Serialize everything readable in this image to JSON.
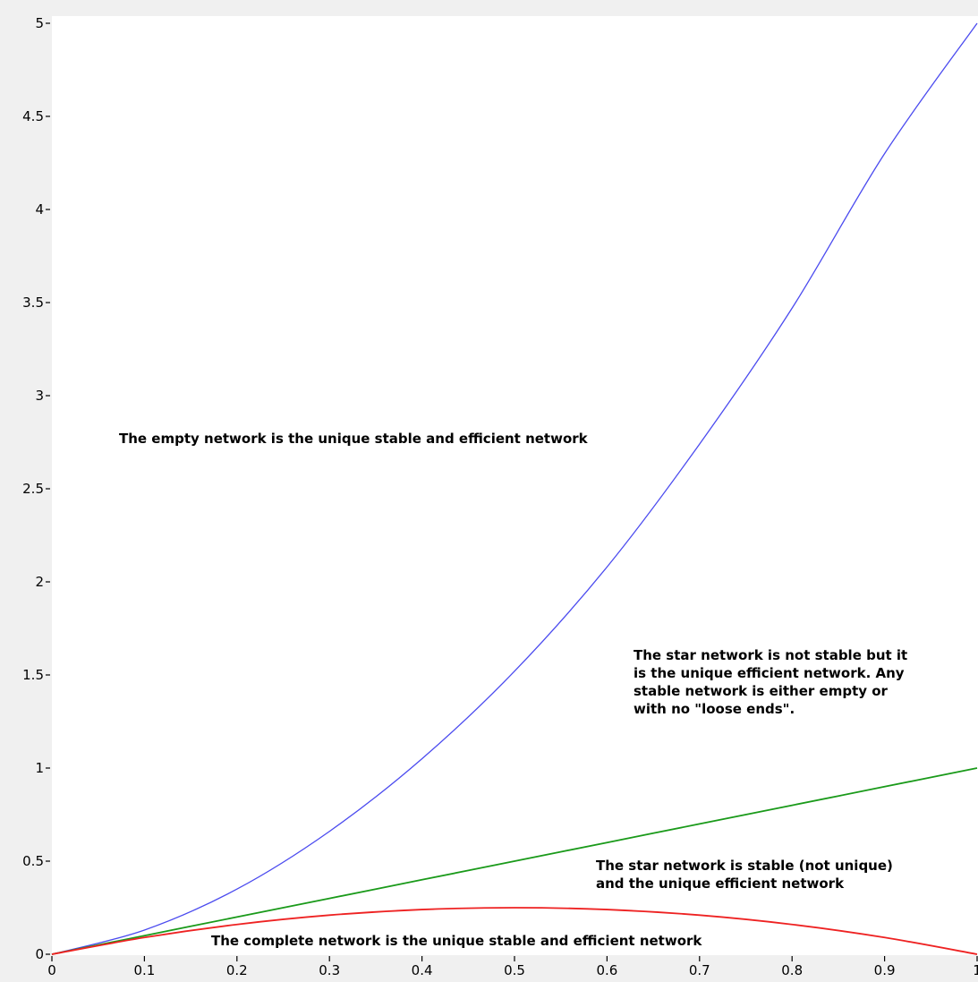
{
  "chart_data": {
    "type": "line",
    "title": "",
    "xlabel": "",
    "ylabel": "",
    "xlim": [
      0,
      1
    ],
    "ylim": [
      0,
      5
    ],
    "grid": false,
    "x_ticks": [
      "0",
      "0.1",
      "0.2",
      "0.3",
      "0.4",
      "0.5",
      "0.6",
      "0.7",
      "0.8",
      "0.9",
      "1"
    ],
    "y_ticks": [
      "0",
      "0.5",
      "1",
      "1.5",
      "2",
      "2.5",
      "3",
      "3.5",
      "4",
      "4.5",
      "5"
    ],
    "series": [
      {
        "color": "#4b4bef",
        "x": [
          0,
          0.1,
          0.2,
          0.3,
          0.4,
          0.5,
          0.6,
          0.7,
          0.8,
          0.9,
          1.0
        ],
        "y": [
          0,
          0.13,
          0.35,
          0.66,
          1.05,
          1.52,
          2.08,
          2.74,
          3.47,
          4.3,
          5.0
        ]
      },
      {
        "color": "#1a9a1a",
        "x": [
          0,
          0.1,
          0.2,
          0.3,
          0.4,
          0.5,
          0.6,
          0.7,
          0.8,
          0.9,
          1.0
        ],
        "y": [
          0,
          0.1,
          0.2,
          0.3,
          0.4,
          0.5,
          0.6,
          0.7,
          0.8,
          0.9,
          1.0
        ]
      },
      {
        "color": "#ee2222",
        "x": [
          0,
          0.1,
          0.2,
          0.3,
          0.4,
          0.5,
          0.6,
          0.7,
          0.8,
          0.9,
          1.0
        ],
        "y": [
          0,
          0.09,
          0.16,
          0.21,
          0.24,
          0.25,
          0.24,
          0.21,
          0.16,
          0.09,
          0
        ]
      }
    ],
    "annotations": [
      {
        "text": "The empty network is the unique stable and efficient network"
      },
      {
        "lines": [
          "The star network is not stable but it",
          "is the unique efficient network. Any",
          "stable network is either empty or",
          "with no \"loose ends\"."
        ]
      },
      {
        "lines": [
          "The star network is stable (not unique)",
          "and the unique efficient network"
        ]
      },
      {
        "text": "The complete network is the unique stable and efficient network"
      }
    ]
  }
}
